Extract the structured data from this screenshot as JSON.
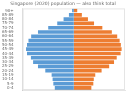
{
  "chart_data": {
    "type": "bar",
    "orientation": "horizontal",
    "title": "Singapore (2020) population — also think total",
    "categories": [
      "0-4",
      "5-9",
      "10-14",
      "15-19",
      "20-24",
      "25-29",
      "30-34",
      "35-39",
      "40-44",
      "45-49",
      "50-54",
      "55-59",
      "60-64",
      "65-69",
      "70-74",
      "75-79",
      "80-84",
      "85-89",
      "90+"
    ],
    "series": [
      {
        "color": "#5b9bd5",
        "values": [
          -78,
          -84,
          -87,
          -91,
          -117,
          -147,
          -167,
          -176,
          -192,
          -196,
          -192,
          -186,
          -175,
          -147,
          -105,
          -68,
          -42,
          -20,
          -7
        ]
      },
      {
        "color": "#ed7d31",
        "values": [
          72,
          80,
          82,
          88,
          114,
          145,
          165,
          176,
          192,
          196,
          193,
          188,
          178,
          156,
          117,
          83,
          58,
          33,
          14
        ]
      }
    ],
    "xlim": [
      -210,
      210
    ],
    "grid": false,
    "tick_labels": "y"
  }
}
